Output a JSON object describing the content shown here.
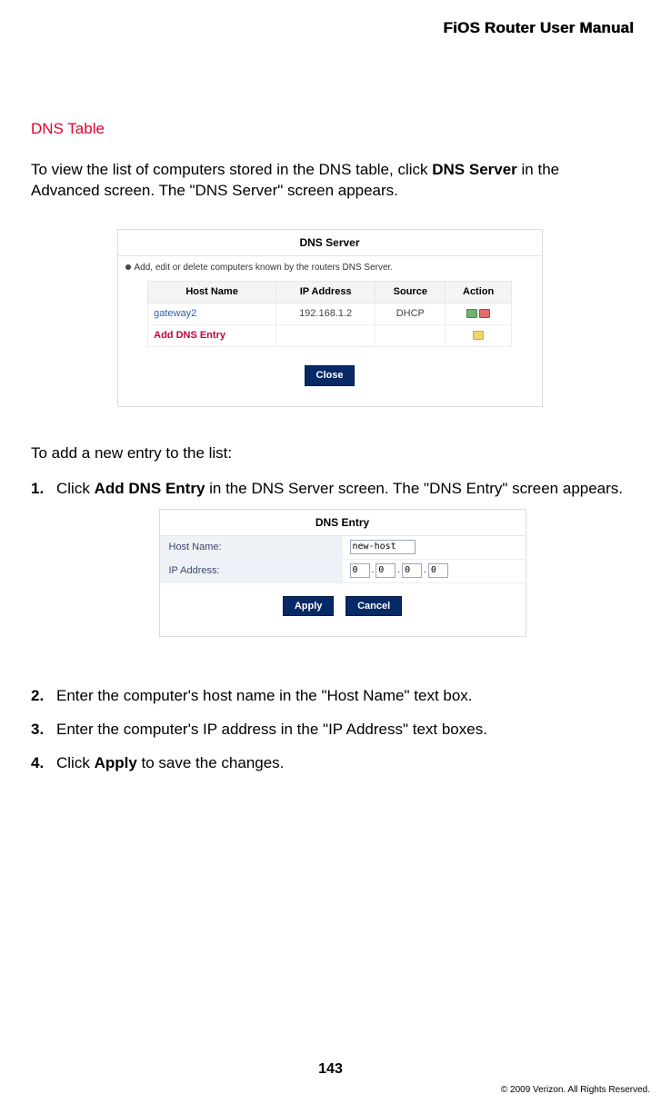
{
  "header": {
    "title": "FiOS Router User Manual"
  },
  "section": {
    "heading": "DNS Table"
  },
  "intro": {
    "pre": "To view the list of computers stored in the DNS table, click",
    "bold": " DNS Server",
    "post": " in the Advanced screen. The \"DNS Server\" screen appears."
  },
  "dns_server_panel": {
    "title": "DNS Server",
    "note": "Add, edit or delete computers known by the routers DNS Server.",
    "columns": [
      "Host Name",
      "IP Address",
      "Source",
      "Action"
    ],
    "rows": [
      {
        "host": "gateway2",
        "ip": "192.168.1.2",
        "source": "DHCP",
        "action": "edit-del"
      },
      {
        "host": "Add DNS Entry",
        "ip": "",
        "source": "",
        "action": "add",
        "add_row": true
      }
    ],
    "close_label": "Close"
  },
  "sub_intro": "To add a new entry to the list:",
  "steps": {
    "s1_pre": "Click ",
    "s1_bold": "Add DNS Entry",
    "s1_post": " in the DNS Server screen. The \"DNS Entry\" screen appears.",
    "s2": "Enter the computer's host name in the \"Host Name\" text box.",
    "s3": "Enter the computer's IP address in the \"IP Address\" text boxes.",
    "s4_pre": "Click ",
    "s4_bold": "Apply",
    "s4_post": " to save the changes."
  },
  "dns_entry_panel": {
    "title": "DNS Entry",
    "host_label": "Host Name:",
    "host_value": "new-host",
    "ip_label": "IP Address:",
    "ip_octets": [
      "0",
      "0",
      "0",
      "0"
    ],
    "apply_label": "Apply",
    "cancel_label": "Cancel"
  },
  "footer": {
    "page": "143",
    "copyright": "© 2009 Verizon. All Rights Reserved."
  }
}
